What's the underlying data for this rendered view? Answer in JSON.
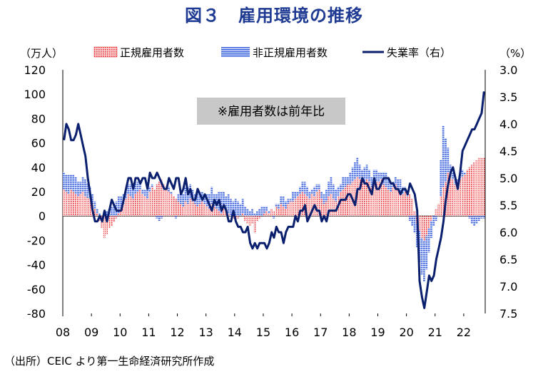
{
  "title": "図３　雇用環境の推移",
  "source": "（出所）CEIC より第一生命経済研究所作成",
  "chart_data": {
    "type": "bar",
    "combo": "stacked-bar + line (secondary inverted axis)",
    "left_unit": "（万人）",
    "right_unit": "（%）",
    "annotation": "※雇用者数は前年比",
    "x_tick_labels": [
      "08",
      "09",
      "10",
      "11",
      "12",
      "13",
      "14",
      "15",
      "16",
      "17",
      "18",
      "19",
      "20",
      "21",
      "22"
    ],
    "y_left": {
      "min": -80,
      "max": 120,
      "ticks": [
        120,
        100,
        80,
        60,
        40,
        20,
        0,
        -20,
        -40,
        -60,
        -80
      ]
    },
    "y_right": {
      "min": 3.0,
      "max": 7.5,
      "inverted": true,
      "ticks": [
        "3.0",
        "3.5",
        "4.0",
        "4.5",
        "5.0",
        "5.5",
        "6.0",
        "6.5",
        "7.0",
        "7.5"
      ]
    },
    "legend": [
      "正規雇用者数",
      "非正規雇用者数",
      "失業率（右）"
    ],
    "colors": {
      "regular": "#e8333a",
      "nonregular": "#3a5fd6",
      "unemployment": "#0a1f6e"
    },
    "series": [
      {
        "name": "正規雇用者数",
        "axis": "left",
        "values_yearly_approx": {
          "08": [
            22,
            20,
            18,
            22,
            20,
            18,
            16,
            18,
            20,
            16,
            15,
            14
          ],
          "09": [
            10,
            6,
            2,
            -4,
            -10,
            -18,
            -15,
            -10,
            -8,
            -5,
            -2,
            2
          ],
          "10": [
            6,
            10,
            14,
            18,
            16,
            14,
            18,
            20,
            22,
            18,
            16,
            14
          ],
          "11": [
            20,
            24,
            22,
            26,
            28,
            30,
            26,
            22,
            20,
            18,
            16,
            14
          ],
          "12": [
            12,
            10,
            8,
            12,
            10,
            14,
            12,
            10,
            8,
            10,
            12,
            10
          ],
          "13": [
            8,
            6,
            10,
            8,
            6,
            4,
            2,
            6,
            4,
            2,
            0,
            -2
          ],
          "14": [
            -4,
            -2,
            0,
            2,
            -4,
            -6,
            -8,
            -6,
            -14,
            -4,
            -2,
            0
          ],
          "15": [
            2,
            4,
            2,
            6,
            4,
            8,
            6,
            10,
            8,
            6,
            10,
            12
          ],
          "16": [
            12,
            14,
            16,
            18,
            20,
            18,
            16,
            14,
            18,
            16,
            20,
            22
          ],
          "17": [
            14,
            10,
            12,
            16,
            18,
            14,
            12,
            16,
            20,
            22,
            24,
            26
          ],
          "18": [
            26,
            28,
            30,
            32,
            30,
            28,
            26,
            30,
            28,
            24,
            26,
            28
          ],
          "19": [
            28,
            30,
            26,
            24,
            22,
            20,
            24,
            26,
            22,
            20,
            18,
            20
          ],
          "20": [
            16,
            18,
            14,
            4,
            -6,
            -12,
            -18,
            -20,
            -16,
            -10,
            -4,
            0
          ],
          "21": [
            6,
            10,
            16,
            24,
            28,
            36,
            32,
            30,
            26,
            28,
            30,
            32
          ],
          "22": [
            34,
            38,
            40,
            42,
            44,
            46,
            48,
            48,
            48
          ]
        }
      },
      {
        "name": "非正規雇用者数",
        "axis": "left",
        "values_yearly_approx": {
          "08": [
            14,
            14,
            16,
            12,
            14,
            14,
            12,
            10,
            12,
            14,
            12,
            10
          ],
          "09": [
            8,
            6,
            4,
            2,
            0,
            2,
            4,
            6,
            8,
            10,
            12,
            14
          ],
          "10": [
            10,
            8,
            6,
            8,
            10,
            12,
            10,
            8,
            6,
            4,
            6,
            8
          ],
          "11": [
            4,
            2,
            0,
            -2,
            -4,
            -2,
            0,
            2,
            4,
            2,
            0,
            -2
          ],
          "12": [
            6,
            8,
            10,
            12,
            14,
            12,
            10,
            8,
            12,
            10,
            8,
            6
          ],
          "13": [
            10,
            12,
            14,
            10,
            12,
            16,
            18,
            14,
            12,
            16,
            14,
            12
          ],
          "14": [
            14,
            12,
            10,
            12,
            8,
            6,
            4,
            6,
            2,
            4,
            6,
            8
          ],
          "15": [
            6,
            4,
            2,
            0,
            -2,
            2,
            4,
            6,
            8,
            6,
            4,
            2
          ],
          "16": [
            8,
            6,
            4,
            6,
            8,
            10,
            8,
            6,
            4,
            8,
            6,
            4
          ],
          "17": [
            6,
            8,
            10,
            12,
            14,
            12,
            10,
            8,
            6,
            10,
            8,
            6
          ],
          "18": [
            10,
            12,
            14,
            16,
            12,
            10,
            14,
            12,
            10,
            8,
            12,
            10
          ],
          "19": [
            8,
            6,
            10,
            12,
            8,
            6,
            4,
            6,
            8,
            10,
            6,
            4
          ],
          "20": [
            2,
            -4,
            -8,
            -14,
            -20,
            -26,
            -30,
            -34,
            -28,
            -20,
            -14,
            -8
          ],
          "21": [
            -4,
            0,
            30,
            50,
            36,
            20,
            10,
            6,
            4,
            2,
            4,
            6
          ],
          "22": [
            2,
            0,
            -2,
            -6,
            -8,
            -6,
            -4,
            -2,
            -2
          ]
        }
      },
      {
        "name": "失業率（右）",
        "axis": "right",
        "values_yearly_approx": {
          "08": [
            4.3,
            4.0,
            4.1,
            4.3,
            4.3,
            4.2,
            4.0,
            4.2,
            4.4,
            4.6,
            5.0,
            5.3
          ],
          "09": [
            5.6,
            5.8,
            5.8,
            5.7,
            5.8,
            5.6,
            5.8,
            5.6,
            5.4,
            5.5,
            5.6,
            5.6
          ],
          "10": [
            5.6,
            5.4,
            5.2,
            5.0,
            5.0,
            5.2,
            5.0,
            5.0,
            5.1,
            5.0,
            5.0,
            5.2
          ],
          "11": [
            4.9,
            5.0,
            5.0,
            4.9,
            5.0,
            5.1,
            5.2,
            5.2,
            5.0,
            5.1,
            5.2,
            5.0
          ],
          "12": [
            5.0,
            5.3,
            5.2,
            5.0,
            5.3,
            5.2,
            5.4,
            5.4,
            5.2,
            5.3,
            5.4,
            5.3
          ],
          "13": [
            5.4,
            5.5,
            5.6,
            5.4,
            5.5,
            5.4,
            5.6,
            5.5,
            5.6,
            5.8,
            5.8,
            5.6
          ],
          "14": [
            5.8,
            5.9,
            5.9,
            6.0,
            6.0,
            5.9,
            6.2,
            6.3,
            6.2,
            6.3,
            6.2,
            6.2
          ],
          "15": [
            6.2,
            6.3,
            6.2,
            6.0,
            6.1,
            5.9,
            6.0,
            6.0,
            6.2,
            6.0,
            5.9,
            5.9
          ],
          "16": [
            5.9,
            5.7,
            5.8,
            5.6,
            5.6,
            5.5,
            5.8,
            5.7,
            5.6,
            5.5,
            5.6,
            5.6
          ],
          "17": [
            5.8,
            5.7,
            5.8,
            5.6,
            5.6,
            5.6,
            5.6,
            5.5,
            5.4,
            5.4,
            5.4,
            5.3
          ],
          "18": [
            5.3,
            5.4,
            5.5,
            5.2,
            5.2,
            5.0,
            5.1,
            5.1,
            5.2,
            5.3,
            5.0,
            5.2
          ],
          "19": [
            5.2,
            5.1,
            5.0,
            5.0,
            5.0,
            5.1,
            5.1,
            5.2,
            5.2,
            5.3,
            5.2,
            5.2
          ],
          "20": [
            5.3,
            5.1,
            5.2,
            5.3,
            5.6,
            6.9,
            7.2,
            7.4,
            7.1,
            6.8,
            6.9,
            6.8
          ],
          "21": [
            6.5,
            6.3,
            6.1,
            5.8,
            5.4,
            5.1,
            4.9,
            4.8,
            5.0,
            5.2,
            4.9,
            4.5
          ],
          "22": [
            4.4,
            4.3,
            4.2,
            4.1,
            4.1,
            4.0,
            3.9,
            3.8,
            3.4
          ]
        }
      }
    ],
    "grid": false,
    "legend_position": "top"
  }
}
